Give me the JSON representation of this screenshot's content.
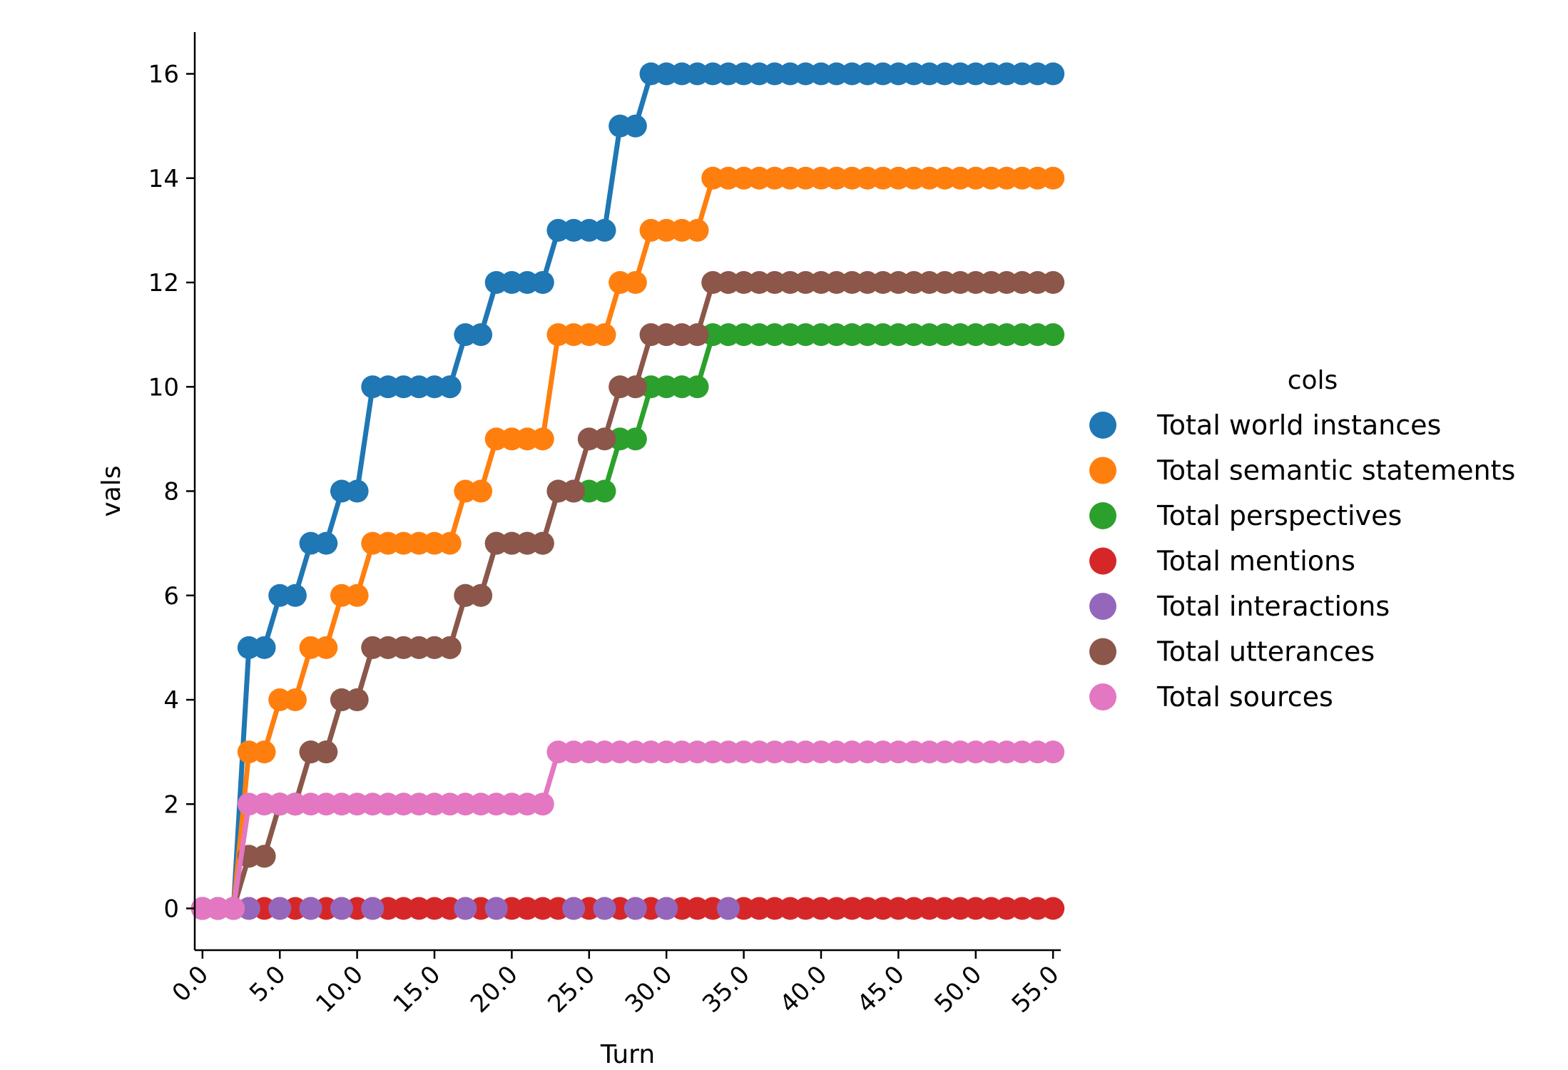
{
  "chart_data": {
    "type": "line",
    "xlabel": "Turn",
    "ylabel": "vals",
    "xlim": [
      -0.5,
      55.5
    ],
    "ylim": [
      -0.8,
      16.8
    ],
    "xticks": [
      0,
      5,
      10,
      15,
      20,
      25,
      30,
      35,
      40,
      45,
      50,
      55
    ],
    "xtick_labels": [
      "0.0",
      "5.0",
      "10.0",
      "15.0",
      "20.0",
      "25.0",
      "30.0",
      "35.0",
      "40.0",
      "45.0",
      "50.0",
      "55.0"
    ],
    "yticks": [
      0,
      2,
      4,
      6,
      8,
      10,
      12,
      14,
      16
    ],
    "ytick_labels": [
      "0",
      "2",
      "4",
      "6",
      "8",
      "10",
      "12",
      "14",
      "16"
    ],
    "grid": false,
    "legend": {
      "title": "cols",
      "placement": "right"
    },
    "x": [
      0,
      1,
      2,
      3,
      4,
      5,
      6,
      7,
      8,
      9,
      10,
      11,
      12,
      13,
      14,
      15,
      16,
      17,
      18,
      19,
      20,
      21,
      22,
      23,
      24,
      25,
      26,
      27,
      28,
      29,
      30,
      31,
      32,
      33,
      34,
      35,
      36,
      37,
      38,
      39,
      40,
      41,
      42,
      43,
      44,
      45,
      46,
      47,
      48,
      49,
      50,
      51,
      52,
      53,
      54,
      55
    ],
    "series": [
      {
        "name": "Total world instances",
        "color": "#1f77b4",
        "values": [
          0,
          0,
          0,
          5,
          5,
          6,
          6,
          7,
          7,
          8,
          8,
          10,
          10,
          10,
          10,
          10,
          10,
          11,
          11,
          12,
          12,
          12,
          12,
          13,
          13,
          13,
          13,
          15,
          15,
          16,
          16,
          16,
          16,
          16,
          16,
          16,
          16,
          16,
          16,
          16,
          16,
          16,
          16,
          16,
          16,
          16,
          16,
          16,
          16,
          16,
          16,
          16,
          16,
          16,
          16,
          16
        ]
      },
      {
        "name": "Total semantic statements",
        "color": "#ff7f0e",
        "values": [
          0,
          0,
          0,
          3,
          3,
          4,
          4,
          5,
          5,
          6,
          6,
          7,
          7,
          7,
          7,
          7,
          7,
          8,
          8,
          9,
          9,
          9,
          9,
          11,
          11,
          11,
          11,
          12,
          12,
          13,
          13,
          13,
          13,
          14,
          14,
          14,
          14,
          14,
          14,
          14,
          14,
          14,
          14,
          14,
          14,
          14,
          14,
          14,
          14,
          14,
          14,
          14,
          14,
          14,
          14,
          14
        ]
      },
      {
        "name": "Total perspectives",
        "color": "#2ca02c",
        "values": [
          0,
          0,
          0,
          1,
          1,
          2,
          2,
          3,
          3,
          4,
          4,
          5,
          5,
          5,
          5,
          5,
          5,
          6,
          6,
          7,
          7,
          7,
          7,
          8,
          8,
          8,
          8,
          9,
          9,
          10,
          10,
          10,
          10,
          11,
          11,
          11,
          11,
          11,
          11,
          11,
          11,
          11,
          11,
          11,
          11,
          11,
          11,
          11,
          11,
          11,
          11,
          11,
          11,
          11,
          11,
          11
        ]
      },
      {
        "name": "Total mentions",
        "color": "#d62728",
        "values": [
          0,
          0,
          0,
          0,
          0,
          0,
          0,
          0,
          0,
          0,
          0,
          0,
          0,
          0,
          0,
          0,
          0,
          0,
          0,
          0,
          0,
          0,
          0,
          0,
          0,
          0,
          0,
          0,
          0,
          0,
          0,
          0,
          0,
          0,
          0,
          0,
          0,
          0,
          0,
          0,
          0,
          0,
          0,
          0,
          0,
          0,
          0,
          0,
          0,
          0,
          0,
          0,
          0,
          0,
          0,
          0
        ]
      },
      {
        "name": "Total interactions",
        "color": "#9467bd",
        "values": [
          0,
          0,
          0,
          0,
          null,
          0,
          null,
          0,
          null,
          0,
          null,
          0,
          null,
          null,
          null,
          null,
          null,
          0,
          null,
          0,
          null,
          null,
          null,
          null,
          0,
          null,
          0,
          null,
          0,
          null,
          0,
          null,
          null,
          null,
          0,
          null,
          null,
          null,
          null,
          null,
          null,
          null,
          null,
          null,
          null,
          null,
          null,
          null,
          null,
          null,
          null,
          null,
          null,
          null,
          null,
          null
        ]
      },
      {
        "name": "Total utterances",
        "color": "#8c564b",
        "values": [
          0,
          0,
          0,
          1,
          1,
          2,
          2,
          3,
          3,
          4,
          4,
          5,
          5,
          5,
          5,
          5,
          5,
          6,
          6,
          7,
          7,
          7,
          7,
          8,
          8,
          9,
          9,
          10,
          10,
          11,
          11,
          11,
          11,
          12,
          12,
          12,
          12,
          12,
          12,
          12,
          12,
          12,
          12,
          12,
          12,
          12,
          12,
          12,
          12,
          12,
          12,
          12,
          12,
          12,
          12,
          12
        ]
      },
      {
        "name": "Total sources",
        "color": "#e377c2",
        "values": [
          0,
          0,
          0,
          2,
          2,
          2,
          2,
          2,
          2,
          2,
          2,
          2,
          2,
          2,
          2,
          2,
          2,
          2,
          2,
          2,
          2,
          2,
          2,
          3,
          3,
          3,
          3,
          3,
          3,
          3,
          3,
          3,
          3,
          3,
          3,
          3,
          3,
          3,
          3,
          3,
          3,
          3,
          3,
          3,
          3,
          3,
          3,
          3,
          3,
          3,
          3,
          3,
          3,
          3,
          3,
          3
        ]
      }
    ]
  }
}
